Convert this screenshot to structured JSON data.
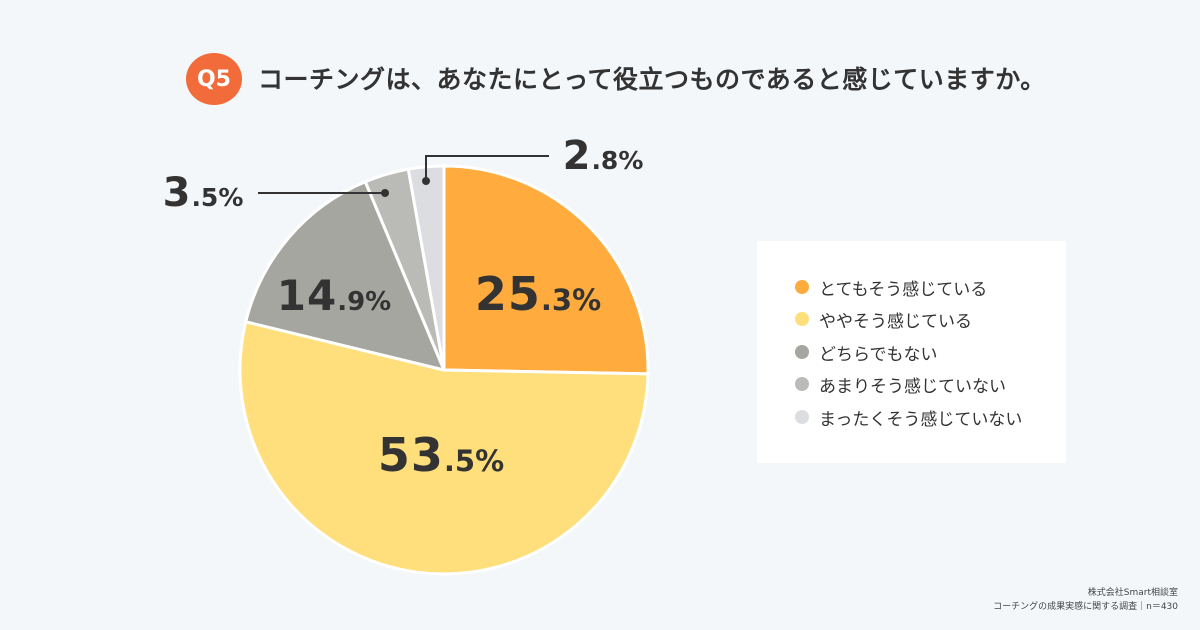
{
  "question_badge": "Q5",
  "question": "コーチングは、あなたにとって役立つものであると感じていますか。",
  "chart_data": {
    "type": "pie",
    "slices": [
      {
        "label": "とてもそう感じている",
        "value": 25.3,
        "int": "25",
        "dec": ".3%",
        "color": "#ffab3d"
      },
      {
        "label": "ややそう感じている",
        "value": 53.5,
        "int": "53",
        "dec": ".5%",
        "color": "#ffdf7c"
      },
      {
        "label": "どちらでもない",
        "value": 14.9,
        "int": "14",
        "dec": ".9%",
        "color": "#a6a6a1"
      },
      {
        "label": "あまりそう感じていない",
        "value": 3.5,
        "int": "3",
        "dec": ".5%",
        "color": "#babab6"
      },
      {
        "label": "まったくそう感じていない",
        "value": 2.8,
        "int": "2",
        "dec": ".8%",
        "color": "#dcdde0"
      }
    ]
  },
  "credit": {
    "line1": "株式会社Smart相談室",
    "line2": "コーチングの成果実感に関する調査｜n＝430"
  }
}
